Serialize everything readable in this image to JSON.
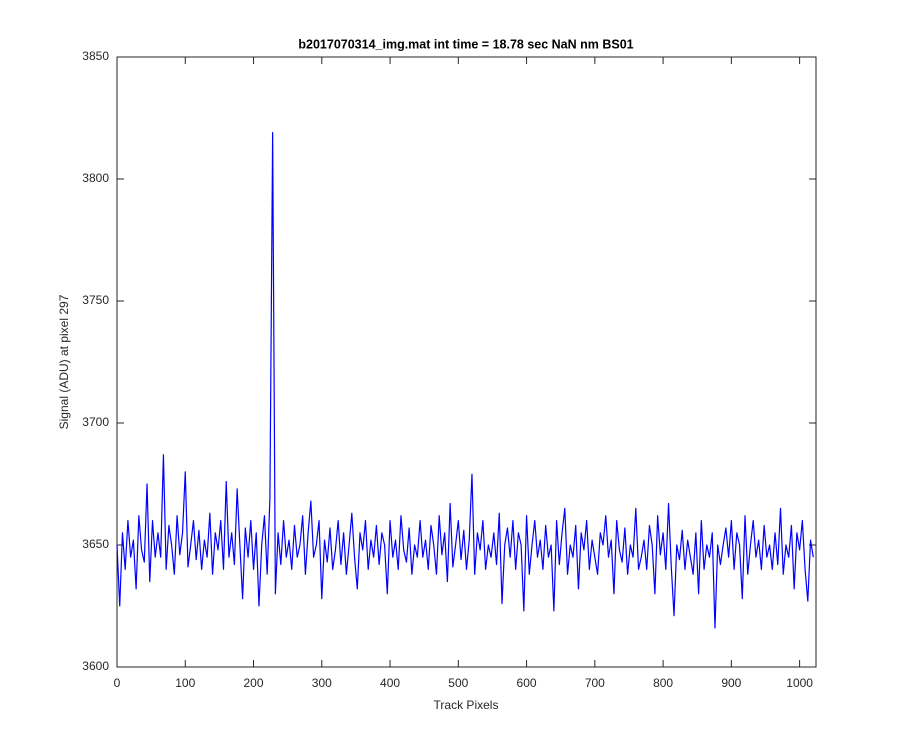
{
  "chart_data": {
    "type": "line",
    "title": "b2017070314_img.mat int time = 18.78 sec  NaN nm BS01",
    "x_label": "Track Pixels",
    "y_label": "Signal (ADU) at pixel 297",
    "xlim": [
      0,
      1024
    ],
    "xticks": [
      0,
      100,
      200,
      300,
      400,
      500,
      600,
      700,
      800,
      900,
      1000
    ],
    "ylim": [
      3600,
      3850
    ],
    "yticks": [
      3600,
      3650,
      3700,
      3750,
      3800,
      3850
    ],
    "grid": false,
    "x": [
      0,
      4,
      8,
      12,
      16,
      20,
      24,
      28,
      32,
      36,
      40,
      44,
      48,
      52,
      56,
      60,
      64,
      68,
      72,
      76,
      80,
      84,
      88,
      92,
      96,
      100,
      104,
      108,
      112,
      116,
      120,
      124,
      128,
      132,
      136,
      140,
      144,
      148,
      152,
      156,
      160,
      164,
      168,
      172,
      176,
      180,
      184,
      188,
      192,
      196,
      200,
      204,
      208,
      212,
      216,
      220,
      224,
      228,
      232,
      236,
      240,
      244,
      248,
      252,
      256,
      260,
      264,
      268,
      272,
      276,
      280,
      284,
      288,
      292,
      296,
      300,
      304,
      308,
      312,
      316,
      320,
      324,
      328,
      332,
      336,
      340,
      344,
      348,
      352,
      356,
      360,
      364,
      368,
      372,
      376,
      380,
      384,
      388,
      392,
      396,
      400,
      404,
      408,
      412,
      416,
      420,
      424,
      428,
      432,
      436,
      440,
      444,
      448,
      452,
      456,
      460,
      464,
      468,
      472,
      476,
      480,
      484,
      488,
      492,
      496,
      500,
      504,
      508,
      512,
      516,
      520,
      524,
      528,
      532,
      536,
      540,
      544,
      548,
      552,
      556,
      560,
      564,
      568,
      572,
      576,
      580,
      584,
      588,
      592,
      596,
      600,
      604,
      608,
      612,
      616,
      620,
      624,
      628,
      632,
      636,
      640,
      644,
      648,
      652,
      656,
      660,
      664,
      668,
      672,
      676,
      680,
      684,
      688,
      692,
      696,
      700,
      704,
      708,
      712,
      716,
      720,
      724,
      728,
      732,
      736,
      740,
      744,
      748,
      752,
      756,
      760,
      764,
      768,
      772,
      776,
      780,
      784,
      788,
      792,
      796,
      800,
      804,
      808,
      812,
      816,
      820,
      824,
      828,
      832,
      836,
      840,
      844,
      848,
      852,
      856,
      860,
      864,
      868,
      872,
      876,
      880,
      884,
      888,
      892,
      896,
      900,
      904,
      908,
      912,
      916,
      920,
      924,
      928,
      932,
      936,
      940,
      944,
      948,
      952,
      956,
      960,
      964,
      968,
      972,
      976,
      980,
      984,
      988,
      992,
      996,
      1000,
      1004,
      1008,
      1012,
      1016,
      1020
    ],
    "series": [
      {
        "color": "#0000ff",
        "values": [
          3650,
          3625,
          3655,
          3640,
          3660,
          3645,
          3652,
          3632,
          3662,
          3648,
          3643,
          3675,
          3635,
          3660,
          3645,
          3655,
          3645,
          3687,
          3640,
          3658,
          3650,
          3638,
          3662,
          3646,
          3655,
          3680,
          3641,
          3650,
          3660,
          3644,
          3656,
          3640,
          3652,
          3645,
          3663,
          3638,
          3655,
          3648,
          3660,
          3640,
          3676,
          3645,
          3655,
          3642,
          3673,
          3650,
          3628,
          3657,
          3645,
          3660,
          3640,
          3655,
          3625,
          3650,
          3662,
          3638,
          3669,
          3819,
          3630,
          3655,
          3642,
          3660,
          3645,
          3652,
          3640,
          3658,
          3645,
          3650,
          3662,
          3638,
          3655,
          3668,
          3645,
          3650,
          3660,
          3628,
          3652,
          3643,
          3657,
          3640,
          3648,
          3660,
          3642,
          3655,
          3638,
          3650,
          3663,
          3645,
          3632,
          3655,
          3648,
          3660,
          3640,
          3652,
          3645,
          3658,
          3642,
          3655,
          3650,
          3630,
          3660,
          3645,
          3652,
          3640,
          3662,
          3648,
          3643,
          3657,
          3638,
          3650,
          3645,
          3660,
          3645,
          3652,
          3640,
          3658,
          3650,
          3638,
          3662,
          3646,
          3655,
          3635,
          3667,
          3641,
          3650,
          3660,
          3644,
          3656,
          3640,
          3652,
          3679,
          3638,
          3655,
          3648,
          3660,
          3640,
          3650,
          3645,
          3655,
          3642,
          3663,
          3626,
          3650,
          3657,
          3645,
          3660,
          3640,
          3655,
          3650,
          3623,
          3662,
          3638,
          3650,
          3660,
          3645,
          3652,
          3640,
          3658,
          3645,
          3650,
          3623,
          3660,
          3642,
          3655,
          3665,
          3638,
          3650,
          3645,
          3658,
          3632,
          3655,
          3648,
          3660,
          3640,
          3652,
          3645,
          3638,
          3655,
          3650,
          3662,
          3645,
          3652,
          3630,
          3660,
          3648,
          3643,
          3657,
          3638,
          3650,
          3645,
          3665,
          3640,
          3645,
          3652,
          3640,
          3658,
          3650,
          3630,
          3662,
          3646,
          3655,
          3640,
          3667,
          3641,
          3621,
          3650,
          3644,
          3656,
          3640,
          3652,
          3645,
          3638,
          3655,
          3630,
          3660,
          3640,
          3650,
          3645,
          3655,
          3616,
          3650,
          3642,
          3650,
          3657,
          3645,
          3660,
          3640,
          3655,
          3650,
          3628,
          3662,
          3638,
          3650,
          3660,
          3645,
          3652,
          3640,
          3658,
          3645,
          3650,
          3640,
          3655,
          3642,
          3665,
          3638,
          3650,
          3645,
          3658,
          3632,
          3655,
          3648,
          3660,
          3640,
          3627,
          3652,
          3645
        ]
      }
    ]
  }
}
